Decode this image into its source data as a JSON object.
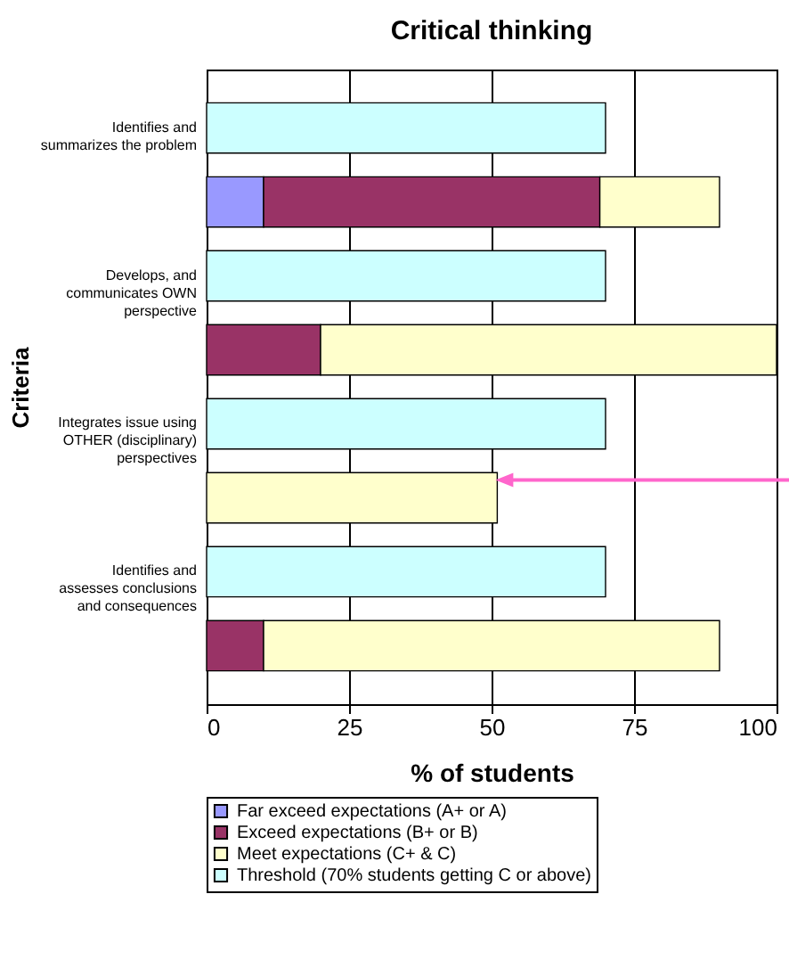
{
  "chart_data": {
    "type": "bar",
    "title": "Critical thinking",
    "orientation": "horizontal",
    "stacked": true,
    "xlabel": "% of students",
    "ylabel": "Criteria",
    "categories": [
      "Identifies and summarizes the problem",
      null,
      "Develops, and communicates OWN perspective",
      null,
      "Integrates issue using OTHER (disciplinary) perspectives",
      null,
      "Identifies and assesses conclusions and consequences",
      null
    ],
    "series": [
      {
        "name": "Far exceed expectations (A+ or A)",
        "color": "#9999ff",
        "values": [
          null,
          10,
          null,
          null,
          null,
          null,
          null,
          null
        ]
      },
      {
        "name": "Exceed expectations (B+ or B)",
        "color": "#993366",
        "values": [
          null,
          59,
          null,
          20,
          null,
          null,
          null,
          10
        ]
      },
      {
        "name": "Meet expectations (C+ & C)",
        "color": "#ffffcc",
        "values": [
          null,
          21,
          null,
          80,
          null,
          51,
          null,
          80
        ]
      },
      {
        "name": "Threshold (70% students getting C or above)",
        "color": "#ccffff",
        "values": [
          70,
          null,
          70,
          null,
          70,
          null,
          70,
          null
        ]
      }
    ],
    "xlim": [
      0,
      100
    ],
    "xticks": [
      0,
      25,
      50,
      75,
      100
    ],
    "grid": "x",
    "legend": "bottom"
  }
}
